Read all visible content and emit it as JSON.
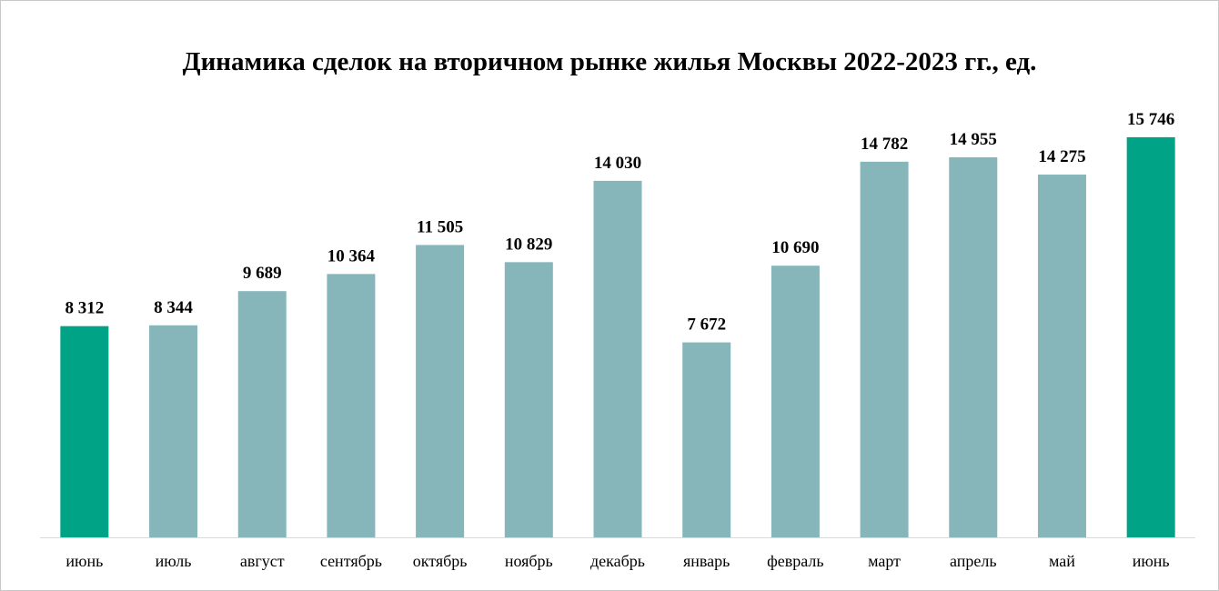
{
  "chart_data": {
    "type": "bar",
    "title": "Динамика сделок на вторичном рынке жилья Москвы 2022-2023 гг., ед.",
    "categories": [
      "июнь",
      "июль",
      "август",
      "сентябрь",
      "октябрь",
      "ноябрь",
      "декабрь",
      "январь",
      "февраль",
      "март",
      "апрель",
      "май",
      "июнь"
    ],
    "values": [
      8312,
      8344,
      9689,
      10364,
      11505,
      10829,
      14030,
      7672,
      10690,
      14782,
      14955,
      14275,
      15746
    ],
    "value_labels": [
      "8 312",
      "8 344",
      "9 689",
      "10 364",
      "11 505",
      "10 829",
      "14 030",
      "7 672",
      "10 690",
      "14 782",
      "14 955",
      "14 275",
      "15 746"
    ],
    "highlighted": [
      true,
      false,
      false,
      false,
      false,
      false,
      false,
      false,
      false,
      false,
      false,
      false,
      true
    ],
    "ylim": [
      0,
      19500
    ],
    "grid": false,
    "legend": "none",
    "colors": {
      "bar": "#86b5ba",
      "highlight": "#00a385",
      "axis": "#d9d9d9"
    }
  }
}
